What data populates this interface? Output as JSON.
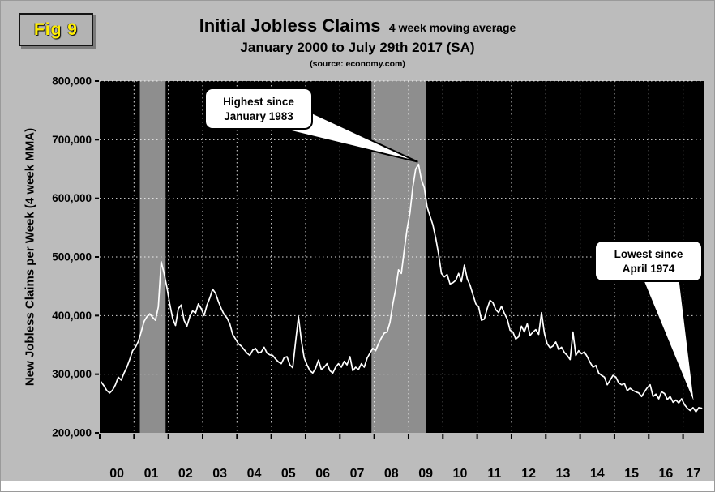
{
  "fig_label": "Fig 9",
  "chart_data": {
    "type": "line",
    "title": "Initial Jobless Claims",
    "title_suffix": "4 week moving average",
    "subtitle": "January 2000 to July 29th 2017 (SA)",
    "source": "(source: economy.com)",
    "ylabel": "New Jobless Claims per Week (4 week MMA)",
    "ylim": [
      200000,
      800000
    ],
    "ytick_labels": [
      "200,000",
      "300,000",
      "400,000",
      "500,000",
      "600,000",
      "700,000",
      "800,000"
    ],
    "xlim": [
      2000,
      2017.6
    ],
    "xtick_labels": [
      "00",
      "01",
      "02",
      "03",
      "04",
      "05",
      "06",
      "07",
      "08",
      "09",
      "10",
      "11",
      "12",
      "13",
      "14",
      "15",
      "16",
      "17"
    ],
    "grid": "dotted-white",
    "plot_background": "#000000",
    "line_color": "#ffffff",
    "recession_band_color": "#8e8e8e",
    "recession_bands": [
      [
        2001.17,
        2001.92
      ],
      [
        2007.92,
        2009.5
      ]
    ],
    "series": [
      {
        "name": "Initial jobless claims, 4-week moving average (SA)",
        "x_start": 2000,
        "x_step_months": 1,
        "unit": "thousands of claims per week",
        "values_k": [
          287,
          280,
          272,
          268,
          273,
          282,
          295,
          290,
          302,
          312,
          325,
          340,
          346,
          356,
          372,
          390,
          398,
          403,
          397,
          392,
          415,
          492,
          472,
          448,
          420,
          395,
          383,
          412,
          418,
          392,
          382,
          398,
          408,
          404,
          420,
          412,
          400,
          418,
          430,
          445,
          438,
          424,
          412,
          402,
          396,
          386,
          368,
          360,
          352,
          348,
          342,
          336,
          332,
          341,
          344,
          336,
          338,
          346,
          336,
          333,
          332,
          326,
          321,
          318,
          328,
          330,
          316,
          311,
          355,
          398,
          358,
          328,
          316,
          306,
          302,
          310,
          324,
          308,
          312,
          318,
          306,
          302,
          312,
          318,
          312,
          322,
          316,
          330,
          306,
          312,
          308,
          318,
          312,
          327,
          336,
          344,
          340,
          352,
          362,
          370,
          372,
          388,
          420,
          445,
          478,
          472,
          512,
          548,
          575,
          620,
          650,
          658,
          632,
          618,
          585,
          570,
          555,
          532,
          505,
          472,
          466,
          470,
          454,
          456,
          460,
          472,
          458,
          486,
          463,
          452,
          436,
          420,
          415,
          392,
          394,
          412,
          426,
          422,
          410,
          405,
          416,
          404,
          394,
          375,
          372,
          360,
          364,
          382,
          372,
          386,
          366,
          372,
          376,
          368,
          405,
          370,
          352,
          345,
          348,
          355,
          342,
          346,
          337,
          332,
          325,
          372,
          332,
          340,
          335,
          338,
          330,
          320,
          312,
          315,
          302,
          298,
          295,
          282,
          290,
          298,
          295,
          285,
          282,
          284,
          272,
          276,
          272,
          270,
          268,
          262,
          270,
          277,
          282,
          262,
          266,
          258,
          270,
          267,
          257,
          262,
          252,
          256,
          251,
          258,
          248,
          242,
          238,
          243,
          236,
          243,
          242
        ]
      }
    ],
    "annotations": [
      {
        "lines": [
          "Highest since",
          "January 1983"
        ],
        "target_x": 2009.27,
        "target_y": 658000
      },
      {
        "lines": [
          "Lowest since",
          "April 1974"
        ],
        "target_x": 2017.35,
        "target_y": 241000
      }
    ]
  }
}
